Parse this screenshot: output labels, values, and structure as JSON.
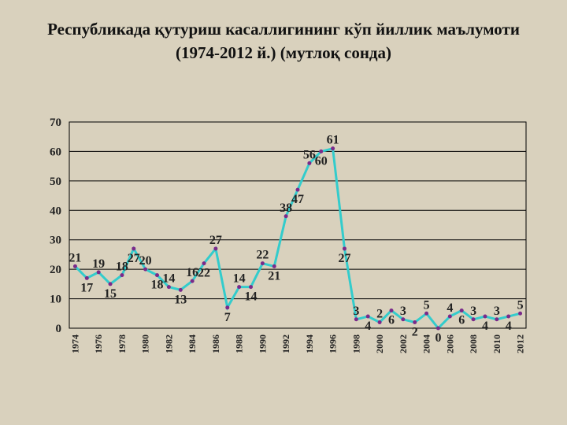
{
  "chart_data": {
    "type": "line",
    "title": "Республикада қутуриш касаллигининг кўп йиллик маълумоти (1974-2012 й.) (мутлоқ сонда)",
    "categories": [
      "1974",
      null,
      "1976",
      null,
      "1978",
      null,
      "1980",
      null,
      "1982",
      null,
      "1984",
      null,
      "1986",
      null,
      "1988",
      null,
      "1990",
      null,
      "1992",
      null,
      "1994",
      null,
      "1996",
      null,
      "1998",
      null,
      "2000",
      null,
      "2002",
      null,
      "2004",
      null,
      "2006",
      null,
      "2008",
      null,
      "2010",
      null,
      "2012"
    ],
    "values": [
      21,
      17,
      19,
      15,
      18,
      27,
      20,
      18,
      14,
      13,
      16,
      22,
      27,
      7,
      14,
      14,
      22,
      21,
      38,
      47,
      56,
      60,
      61,
      27,
      3,
      4,
      2,
      6,
      3,
      2,
      5,
      0,
      4,
      6,
      3,
      4,
      3,
      4,
      5
    ],
    "color": "#33cccc",
    "marker_color": "#7a2a8a",
    "ylim": [
      0,
      70
    ],
    "yticks": [
      0,
      10,
      20,
      30,
      40,
      50,
      60,
      70
    ],
    "grid": true
  }
}
